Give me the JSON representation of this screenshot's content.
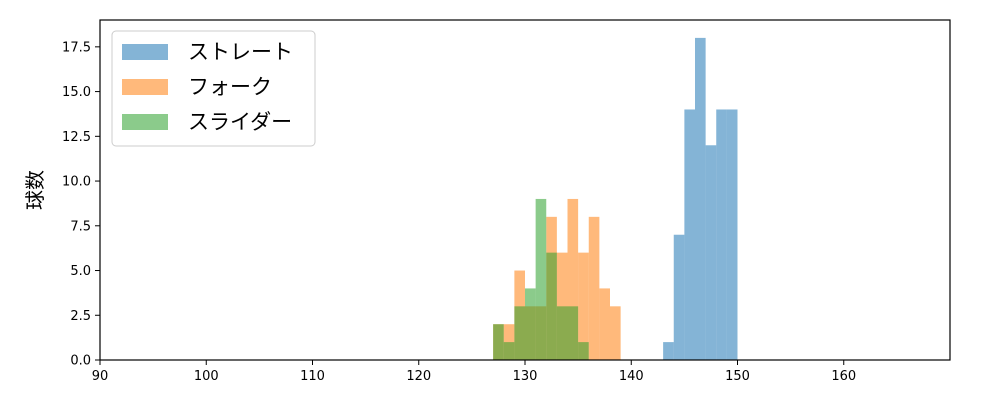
{
  "chart_data": {
    "type": "histogram",
    "xlabel": "",
    "ylabel": "球数",
    "xlim": [
      90,
      170
    ],
    "ylim": [
      0,
      19
    ],
    "xticks": [
      90,
      100,
      110,
      120,
      130,
      140,
      150,
      160
    ],
    "yticks": [
      "0.0",
      "2.5",
      "5.0",
      "7.5",
      "10.0",
      "12.5",
      "15.0",
      "17.5"
    ],
    "legend_position": "top-left",
    "grid": false,
    "series": [
      {
        "name": "ストレート",
        "color": "#1f77b4",
        "bin_width": 1,
        "bins": [
          {
            "x": 143,
            "count": 1
          },
          {
            "x": 144,
            "count": 7
          },
          {
            "x": 145,
            "count": 14
          },
          {
            "x": 146,
            "count": 18
          },
          {
            "x": 147,
            "count": 12
          },
          {
            "x": 148,
            "count": 14
          },
          {
            "x": 149,
            "count": 14
          }
        ]
      },
      {
        "name": "フォーク",
        "color": "#ff7f0e",
        "bin_width": 1,
        "bins": [
          {
            "x": 127,
            "count": 2
          },
          {
            "x": 128,
            "count": 2
          },
          {
            "x": 129,
            "count": 5
          },
          {
            "x": 130,
            "count": 3
          },
          {
            "x": 131,
            "count": 3
          },
          {
            "x": 132,
            "count": 8
          },
          {
            "x": 133,
            "count": 6
          },
          {
            "x": 134,
            "count": 9
          },
          {
            "x": 135,
            "count": 6
          },
          {
            "x": 136,
            "count": 8
          },
          {
            "x": 137,
            "count": 4
          },
          {
            "x": 138,
            "count": 3
          }
        ]
      },
      {
        "name": "スライダー",
        "color": "#2ca02c",
        "bin_width": 1,
        "bins": [
          {
            "x": 127,
            "count": 2
          },
          {
            "x": 128,
            "count": 1
          },
          {
            "x": 129,
            "count": 3
          },
          {
            "x": 130,
            "count": 4
          },
          {
            "x": 131,
            "count": 9
          },
          {
            "x": 132,
            "count": 6
          },
          {
            "x": 133,
            "count": 3
          },
          {
            "x": 134,
            "count": 3
          },
          {
            "x": 135,
            "count": 1
          }
        ]
      }
    ]
  }
}
